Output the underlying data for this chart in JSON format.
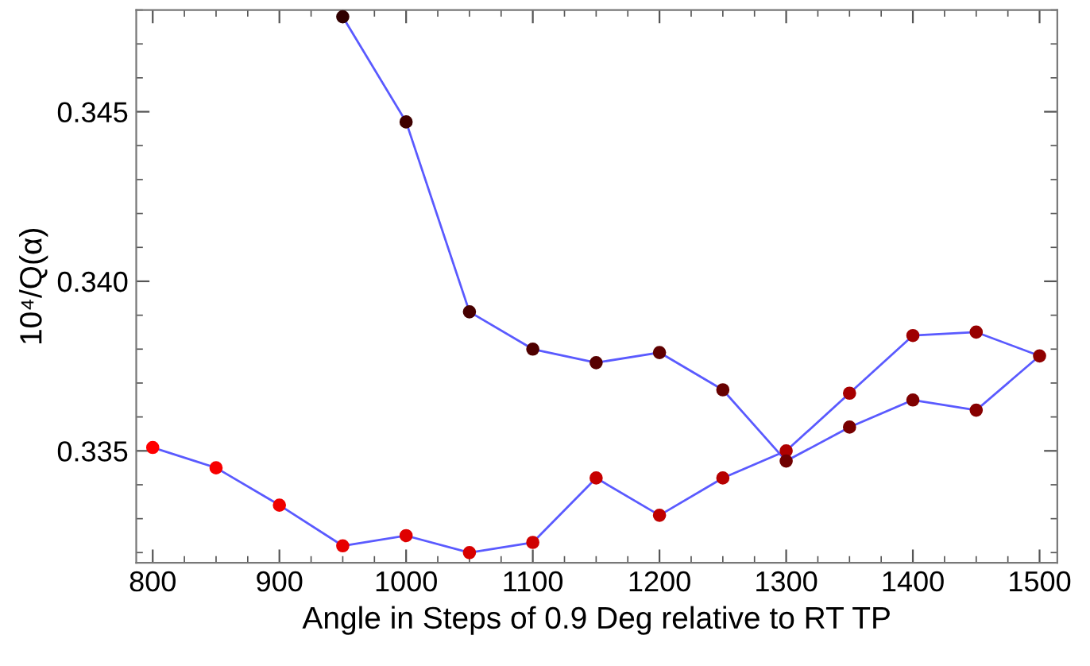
{
  "chart_data": {
    "type": "line",
    "xlabel": "Angle in Steps of 0.9 Deg relative to RT TP",
    "ylabel": "10⁴/Q(α)",
    "series": [
      {
        "color": "#5a5aff",
        "x": [
          800,
          850,
          900,
          950,
          1000,
          1050,
          1100,
          1150,
          1200,
          1250,
          1300,
          1350,
          1400,
          1450,
          1500,
          1450,
          1400,
          1350,
          1300,
          1250,
          1200,
          1150,
          1100,
          1050,
          1000,
          950
        ],
        "values": [
          0.3351,
          0.3345,
          0.3334,
          0.3322,
          0.3325,
          0.332,
          0.3323,
          0.3342,
          0.3331,
          0.3342,
          0.335,
          0.3367,
          0.3384,
          0.3385,
          0.3378,
          0.3362,
          0.3365,
          0.3357,
          0.3347,
          0.3368,
          0.3379,
          0.3376,
          0.338,
          0.3391,
          0.3447,
          0.3478
        ],
        "colors": [
          "#ff0000",
          "#f70000",
          "#ef0000",
          "#e70000",
          "#df0000",
          "#d70000",
          "#cf0000",
          "#c70000",
          "#bf0000",
          "#b70000",
          "#af0000",
          "#a70000",
          "#9f0000",
          "#970000",
          "#8f0000",
          "#870000",
          "#7f0000",
          "#770000",
          "#6f0000",
          "#670000",
          "#5f0000",
          "#570000",
          "#4f0000",
          "#470000",
          "#3f0000",
          "#300000"
        ]
      }
    ],
    "marker": "circle",
    "line_style": "solid",
    "xlim": [
      787,
      1514
    ],
    "xticks": [
      800,
      900,
      1000,
      1100,
      1200,
      1300,
      1400,
      1500
    ],
    "ylim": [
      0.3317,
      0.348
    ],
    "yticks": [
      {
        "value": 0.335,
        "label": "0.335"
      },
      {
        "value": 0.34,
        "label": "0.340"
      },
      {
        "value": 0.345,
        "label": "0.345"
      }
    ],
    "grid": false,
    "legend": false
  }
}
